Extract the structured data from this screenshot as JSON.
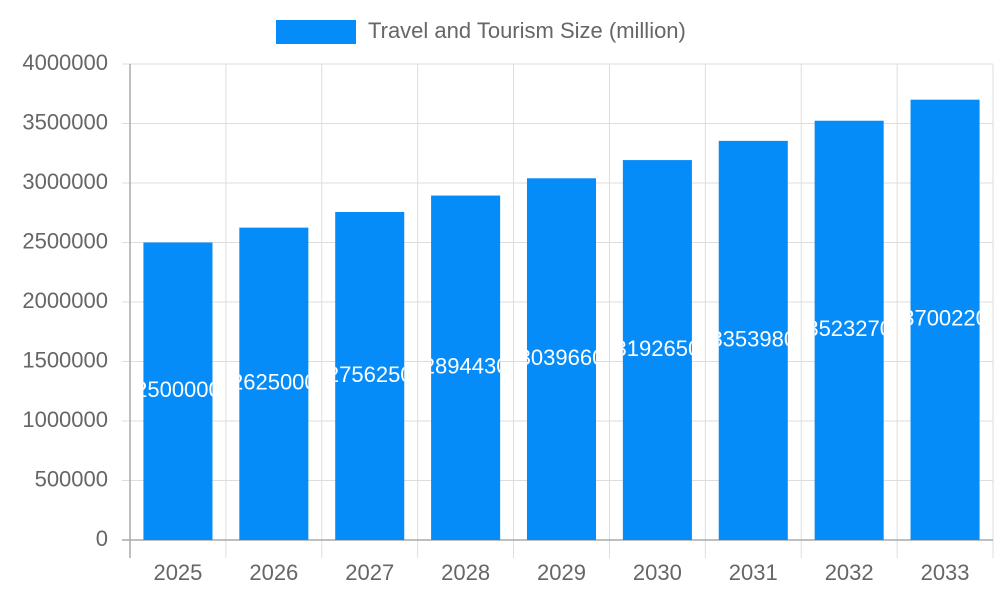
{
  "chart_data": {
    "type": "bar",
    "categories": [
      "2025",
      "2026",
      "2027",
      "2028",
      "2029",
      "2030",
      "2031",
      "2032",
      "2033"
    ],
    "series": [
      {
        "name": "Travel and Tourism Size (million)",
        "color": "#068cf9",
        "values": [
          2500000,
          2625000,
          2756250,
          2894430,
          3039660,
          3192650,
          3353980,
          3523270,
          3700220
        ]
      }
    ],
    "ylim": [
      0,
      4000000
    ],
    "yticks": [
      0,
      500000,
      1000000,
      1500000,
      2000000,
      2500000,
      3000000,
      3500000,
      4000000
    ],
    "grid": true,
    "legend": "top",
    "data_labels": true
  }
}
